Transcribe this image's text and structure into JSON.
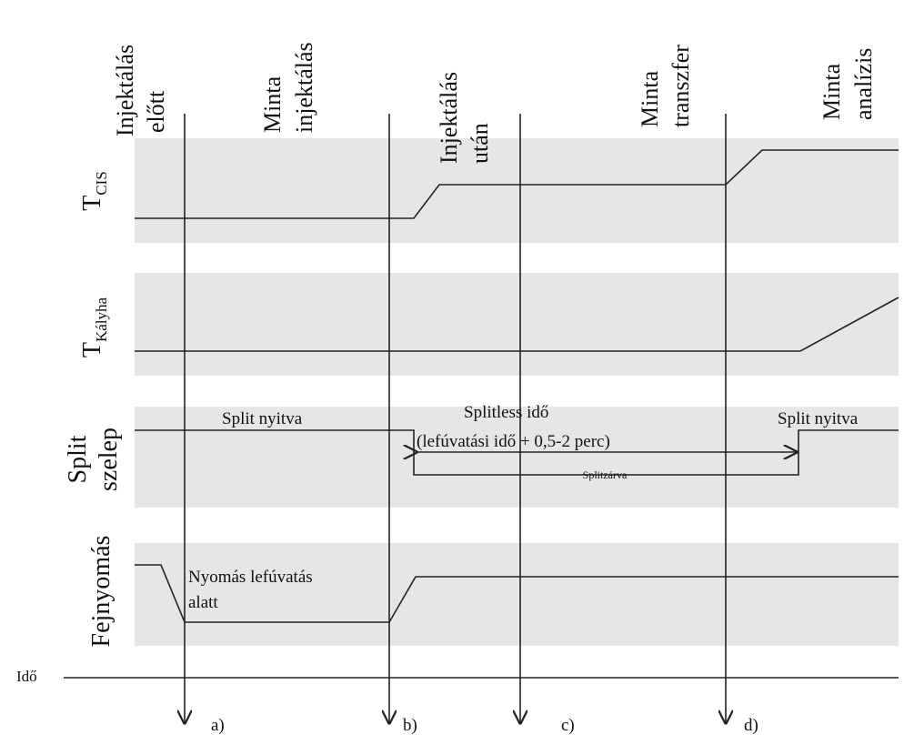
{
  "phases": [
    {
      "lines": [
        "Injektálás",
        "előtt"
      ]
    },
    {
      "lines": [
        "Minta",
        "injektálás"
      ]
    },
    {
      "lines": [
        "Injektálás",
        "után"
      ]
    },
    {
      "lines": [
        "Minta",
        "transzfer"
      ]
    },
    {
      "lines": [
        "Minta",
        "analízis"
      ]
    }
  ],
  "rows": [
    {
      "symbol": "T",
      "subscript": "CIS"
    },
    {
      "symbol": "T",
      "subscript": "Kályha"
    },
    {
      "lines": [
        "Split",
        "szelep"
      ]
    },
    {
      "lines": [
        "Fejnyomás"
      ]
    }
  ],
  "annotations": {
    "split_open_left": "Split nyitva",
    "splitless_time": "Splitless idő",
    "splitless_detail": "(lefúvatási idő + 0,5-2 perc)",
    "split_closed": "Splitzárva",
    "split_open_right": "Split nyitva",
    "pressure_purge": [
      "Nyomás lefúvatás",
      "alatt"
    ]
  },
  "time_label": "Idő",
  "markers": [
    "a)",
    "b)",
    "c)",
    "d)"
  ]
}
